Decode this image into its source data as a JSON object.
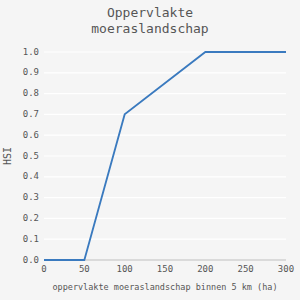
{
  "chart_data": {
    "type": "line",
    "title": "Oppervlakte\nmoeraslandschap",
    "xlabel": "oppervlakte moeraslandschap binnen 5 km (ha)",
    "ylabel": "HSI",
    "x": [
      0,
      50,
      100,
      200,
      300
    ],
    "values": [
      0.0,
      0.0,
      0.7,
      1.0,
      1.0
    ],
    "color": "#3a7abf",
    "xlim": [
      0,
      300
    ],
    "ylim": [
      0.0,
      1.0
    ],
    "xticks": [
      0,
      50,
      100,
      150,
      200,
      250,
      300
    ],
    "yticks": [
      {
        "value": 0.0,
        "label": "0.0"
      },
      {
        "value": 0.1,
        "label": "0.1"
      },
      {
        "value": 0.2,
        "label": "0.2"
      },
      {
        "value": 0.3,
        "label": "0.3"
      },
      {
        "value": 0.4,
        "label": "0.4"
      },
      {
        "value": 0.5,
        "label": "0.5"
      },
      {
        "value": 0.6,
        "label": "0.6"
      },
      {
        "value": 0.7,
        "label": "0.7"
      },
      {
        "value": 0.8,
        "label": "0.8"
      },
      {
        "value": 0.9,
        "label": "0.9"
      },
      {
        "value": 1.0,
        "label": "1.0"
      }
    ],
    "grid": true
  }
}
